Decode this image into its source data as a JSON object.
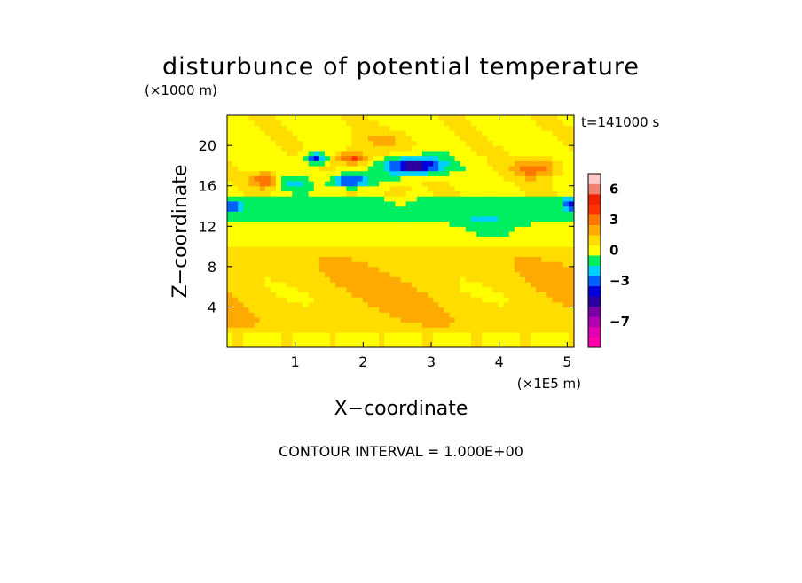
{
  "chart_data": {
    "type": "heatmap",
    "title": "disturbunce of potential temperature",
    "xlabel": "X−coordinate",
    "ylabel": "Z−coordinate",
    "x_unit": "(×1E5 m)",
    "y_unit": "(×1000 m)",
    "time_label": "t=141000 s",
    "contour_interval_text": "CONTOUR INTERVAL = 1.000E+00",
    "xlim": [
      0.0,
      5.1
    ],
    "ylim": [
      0,
      23
    ],
    "x_ticks": [
      {
        "value": 1,
        "label": "1"
      },
      {
        "value": 2,
        "label": "2"
      },
      {
        "value": 3,
        "label": "3"
      },
      {
        "value": 4,
        "label": "4"
      },
      {
        "value": 5,
        "label": "5"
      }
    ],
    "y_ticks": [
      {
        "value": 4,
        "label": "4"
      },
      {
        "value": 8,
        "label": "8"
      },
      {
        "value": 12,
        "label": "12"
      },
      {
        "value": 16,
        "label": "16"
      },
      {
        "value": 20,
        "label": "20"
      }
    ],
    "colorbar": {
      "levels": [
        -9,
        -8,
        -7,
        -6,
        -5,
        -4,
        -3,
        -2,
        -1,
        0,
        1,
        2,
        3,
        4,
        5,
        6,
        7
      ],
      "colors": [
        "#ff00aa",
        "#e000b0",
        "#b000b0",
        "#7a00a8",
        "#2a00a0",
        "#0000d8",
        "#0060ff",
        "#00d0ff",
        "#00ee60",
        "#ffff00",
        "#ffdd00",
        "#ffaa00",
        "#ff7700",
        "#ff3300",
        "#ee2200",
        "#f08070",
        "#ffc8c8"
      ],
      "tick_labels": [
        {
          "value": 6,
          "label": "6"
        },
        {
          "value": 3,
          "label": "3"
        },
        {
          "value": 0,
          "label": "0"
        },
        {
          "value": -3,
          "label": "−3"
        },
        {
          "value": -7,
          "label": "−7"
        }
      ]
    }
  }
}
